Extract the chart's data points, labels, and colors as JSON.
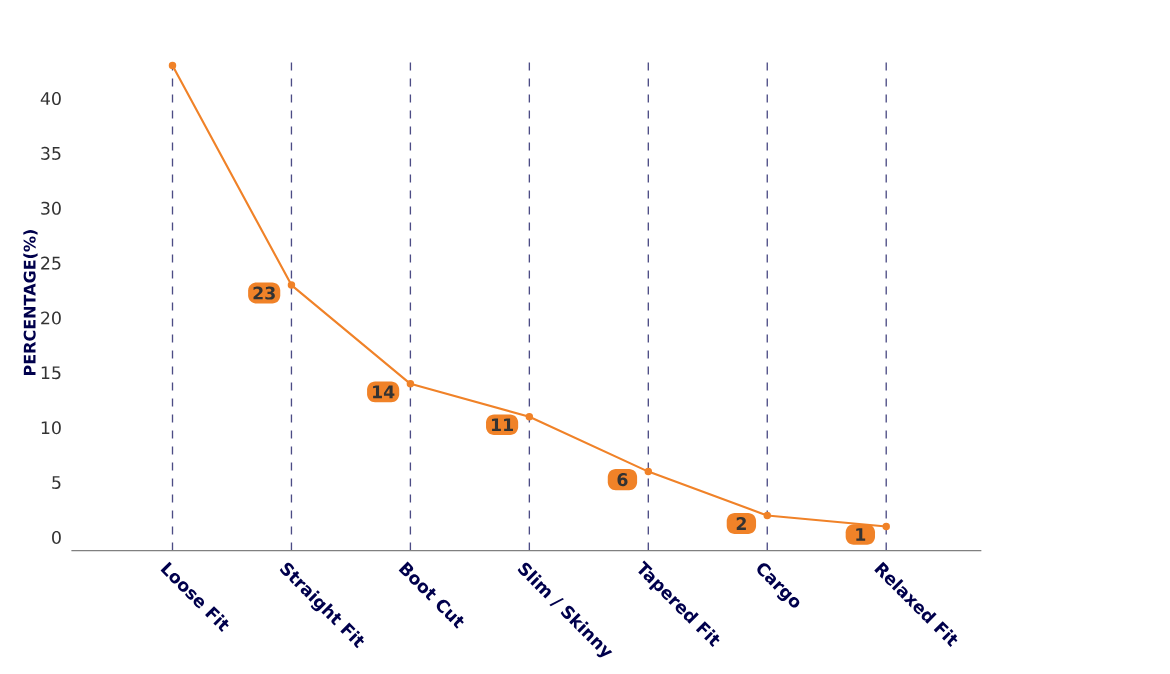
{
  "chart_data": {
    "type": "line",
    "ylabel": "PERCENTAGE(%)",
    "categories": [
      "Loose Fit",
      "Straight Fit",
      "Boot Cut",
      "Slim / Skinny",
      "Tapered Fit",
      "Cargo",
      "Relaxed Fit"
    ],
    "series": [
      {
        "color": "#f08228",
        "values": [
          43,
          23,
          14,
          11,
          6,
          2,
          1
        ],
        "value_labels": [
          null,
          "23",
          "14",
          "11",
          "6",
          "2",
          "1"
        ]
      }
    ],
    "ylim": [
      -1.2,
      44
    ],
    "yticks": [
      0,
      5,
      10,
      15,
      20,
      25,
      30,
      35,
      40
    ],
    "grid": "x",
    "marker": "circle",
    "line_style": "solid"
  }
}
